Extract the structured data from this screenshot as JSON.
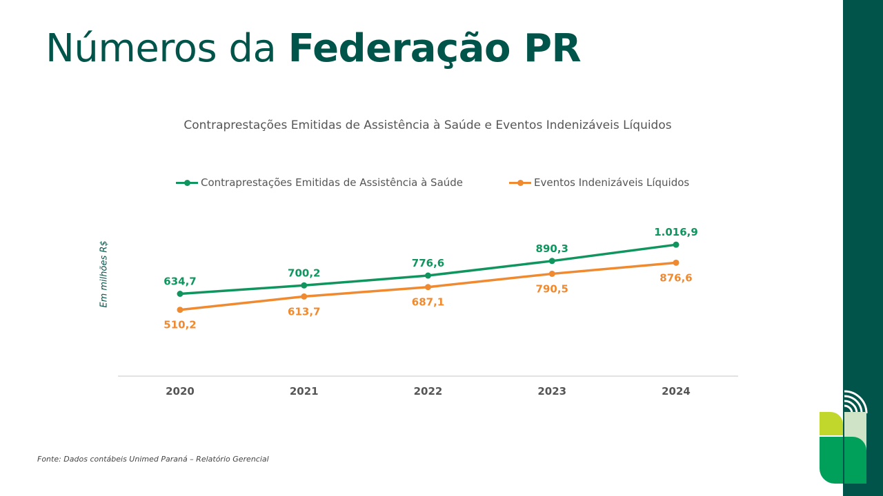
{
  "page": {
    "title_regular": "Números da",
    "title_bold": "Federação PR",
    "source": "Fonte: Dados contábeis Unimed Paraná – Relatório Gerencial"
  },
  "colors": {
    "brand_dark": "#00544a",
    "series_green": "#11955e",
    "series_orange": "#f08a30"
  },
  "chart_data": {
    "type": "line",
    "title": "Contraprestações Emitidas de Assistência à Saúde e Eventos Indenizáveis Líquidos",
    "ylabel": "Em milhões R$",
    "xlabel": "",
    "categories": [
      "2020",
      "2021",
      "2022",
      "2023",
      "2024"
    ],
    "ylim": [
      300,
      1200
    ],
    "grid": false,
    "legend_position": "top",
    "series": [
      {
        "name": "Contraprestações Emitidas de Assistência à Saúde",
        "color": "#11955e",
        "values": [
          634.7,
          700.2,
          776.6,
          890.3,
          1016.9
        ],
        "labels": [
          "634,7",
          "700,2",
          "776,6",
          "890,3",
          "1.016,9"
        ],
        "label_position": "above"
      },
      {
        "name": "Eventos Indenizáveis Líquidos",
        "color": "#f08a30",
        "values": [
          510.2,
          613.7,
          687.1,
          790.5,
          876.6
        ],
        "labels": [
          "510,2",
          "613,7",
          "687,1",
          "790,5",
          "876,6"
        ],
        "label_position": "below"
      }
    ]
  }
}
